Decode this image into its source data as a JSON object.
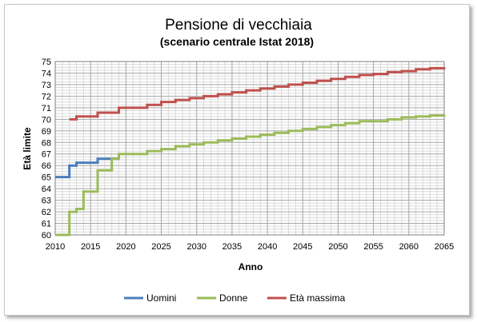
{
  "chart_data": {
    "type": "line",
    "title": "Pensione di vecchiaia",
    "subtitle": "(scenario centrale Istat 2018)",
    "xlabel": "Anno",
    "ylabel": "Età limite",
    "xlim": [
      2010,
      2065
    ],
    "ylim": [
      60,
      75
    ],
    "x_ticks": [
      2010,
      2015,
      2020,
      2025,
      2030,
      2035,
      2040,
      2045,
      2050,
      2055,
      2060,
      2065
    ],
    "y_ticks": [
      60,
      61,
      62,
      63,
      64,
      65,
      66,
      67,
      68,
      69,
      70,
      71,
      72,
      73,
      74,
      75
    ],
    "grid": true,
    "step": true,
    "legend_position": "bottom",
    "series": [
      {
        "name": "Uomini",
        "color": "#4a7ebb",
        "points": [
          [
            2010,
            65.0
          ],
          [
            2012,
            66.0
          ],
          [
            2013,
            66.25
          ],
          [
            2016,
            66.58
          ],
          [
            2018,
            66.58
          ]
        ]
      },
      {
        "name": "Donne",
        "color": "#9bbb59",
        "points": [
          [
            2010,
            60.0
          ],
          [
            2012,
            62.0
          ],
          [
            2013,
            62.25
          ],
          [
            2014,
            63.75
          ],
          [
            2016,
            65.58
          ],
          [
            2018,
            66.58
          ],
          [
            2019,
            67.0
          ],
          [
            2023,
            67.25
          ],
          [
            2025,
            67.42
          ],
          [
            2027,
            67.67
          ],
          [
            2029,
            67.83
          ],
          [
            2031,
            68.0
          ],
          [
            2033,
            68.17
          ],
          [
            2035,
            68.33
          ],
          [
            2037,
            68.5
          ],
          [
            2039,
            68.67
          ],
          [
            2041,
            68.83
          ],
          [
            2043,
            69.0
          ],
          [
            2045,
            69.17
          ],
          [
            2047,
            69.33
          ],
          [
            2049,
            69.5
          ],
          [
            2051,
            69.67
          ],
          [
            2053,
            69.83
          ],
          [
            2057,
            70.0
          ],
          [
            2059,
            70.17
          ],
          [
            2061,
            70.25
          ],
          [
            2063,
            70.33
          ],
          [
            2065,
            70.4
          ]
        ]
      },
      {
        "name": "Età massima",
        "color": "#c0504d",
        "points": [
          [
            2012,
            70.0
          ],
          [
            2013,
            70.25
          ],
          [
            2016,
            70.58
          ],
          [
            2019,
            71.0
          ],
          [
            2023,
            71.25
          ],
          [
            2025,
            71.5
          ],
          [
            2027,
            71.67
          ],
          [
            2029,
            71.83
          ],
          [
            2031,
            72.0
          ],
          [
            2033,
            72.17
          ],
          [
            2035,
            72.33
          ],
          [
            2037,
            72.5
          ],
          [
            2039,
            72.67
          ],
          [
            2041,
            72.83
          ],
          [
            2043,
            73.0
          ],
          [
            2045,
            73.17
          ],
          [
            2047,
            73.33
          ],
          [
            2049,
            73.5
          ],
          [
            2051,
            73.67
          ],
          [
            2053,
            73.83
          ],
          [
            2055,
            73.92
          ],
          [
            2057,
            74.08
          ],
          [
            2059,
            74.17
          ],
          [
            2061,
            74.33
          ],
          [
            2063,
            74.42
          ],
          [
            2065,
            74.5
          ]
        ]
      }
    ]
  }
}
